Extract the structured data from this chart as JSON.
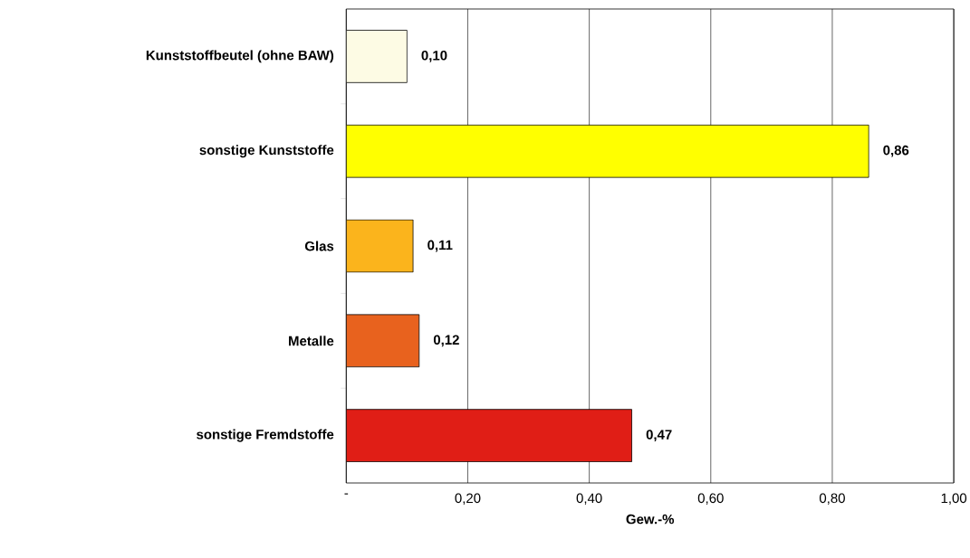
{
  "chart_data": {
    "type": "bar",
    "orientation": "horizontal",
    "xlabel": "Gew.-%",
    "categories": [
      "Kunststoffbeutel (ohne BAW)",
      "sonstige Kunststoffe",
      "Glas",
      "Metalle",
      "sonstige Fremdstoffe"
    ],
    "values": [
      0.1,
      0.86,
      0.11,
      0.12,
      0.47
    ],
    "colors": [
      "#fdfbe4",
      "#ffff00",
      "#fbb41c",
      "#e8621e",
      "#e01e16"
    ],
    "value_labels": [
      "0,10",
      "0,86",
      "0,11",
      "0,12",
      "0,47"
    ],
    "xlim": [
      0,
      1
    ],
    "xticks": [
      {
        "value": 0,
        "label": "-"
      },
      {
        "value": 0.2,
        "label": "0,20"
      },
      {
        "value": 0.4,
        "label": "0,40"
      },
      {
        "value": 0.6,
        "label": "0,60"
      },
      {
        "value": 0.8,
        "label": "0,80"
      },
      {
        "value": 1.0,
        "label": "1,00"
      }
    ],
    "grid": "x"
  }
}
